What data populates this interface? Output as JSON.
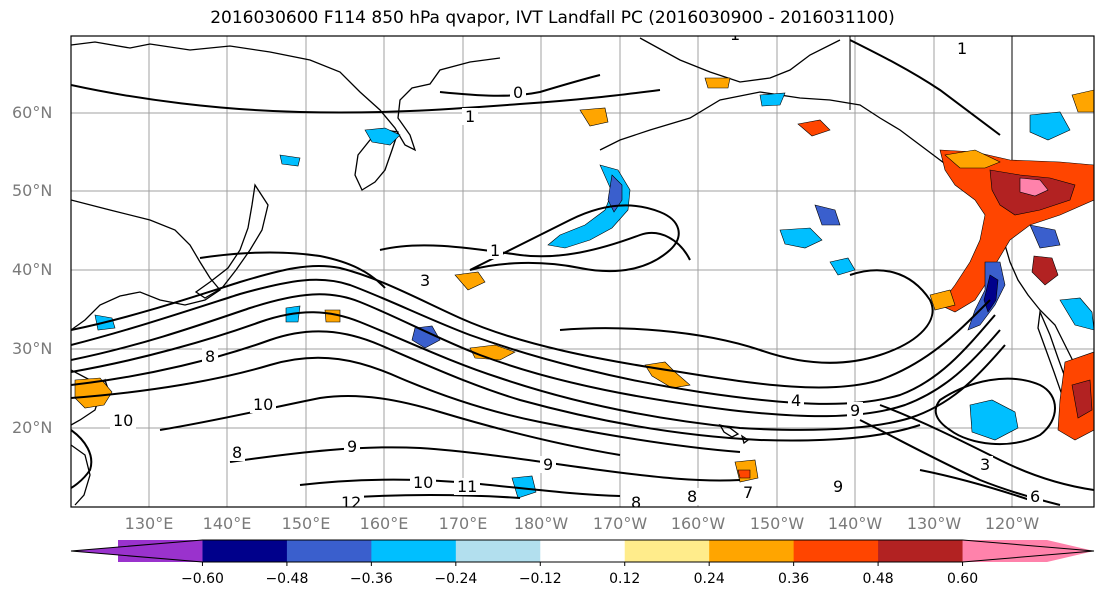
{
  "title": "2016030600 F114 850 hPa qvapor, IVT Landfall PC (2016030900 - 2016031100)",
  "lat_labels": [
    "60°N",
    "50°N",
    "40°N",
    "30°N",
    "20°N"
  ],
  "lon_labels": [
    "130°E",
    "140°E",
    "150°E",
    "160°E",
    "170°E",
    "180°W",
    "170°W",
    "160°W",
    "150°W",
    "140°W",
    "130°W",
    "120°W"
  ],
  "contour_labels": [
    "1",
    "0",
    "1",
    "1",
    "3",
    "8",
    "10",
    "10",
    "9",
    "10",
    "11",
    "12",
    "9",
    "8",
    "7",
    "4",
    "9",
    "3",
    "6",
    "1",
    "9",
    "8",
    "8"
  ],
  "colorbar": {
    "tick_labels": [
      "−0.60",
      "−0.48",
      "−0.36",
      "−0.24",
      "−0.12",
      "0.12",
      "0.24",
      "0.36",
      "0.48",
      "0.60"
    ],
    "colors": [
      "#9a32cd",
      "#00008b",
      "#3a5fcd",
      "#00bfff",
      "#b2dfee",
      "#ffffff",
      "#ffec8b",
      "#ffa500",
      "#ff4500",
      "#b22222",
      "#ff82ab"
    ]
  }
}
